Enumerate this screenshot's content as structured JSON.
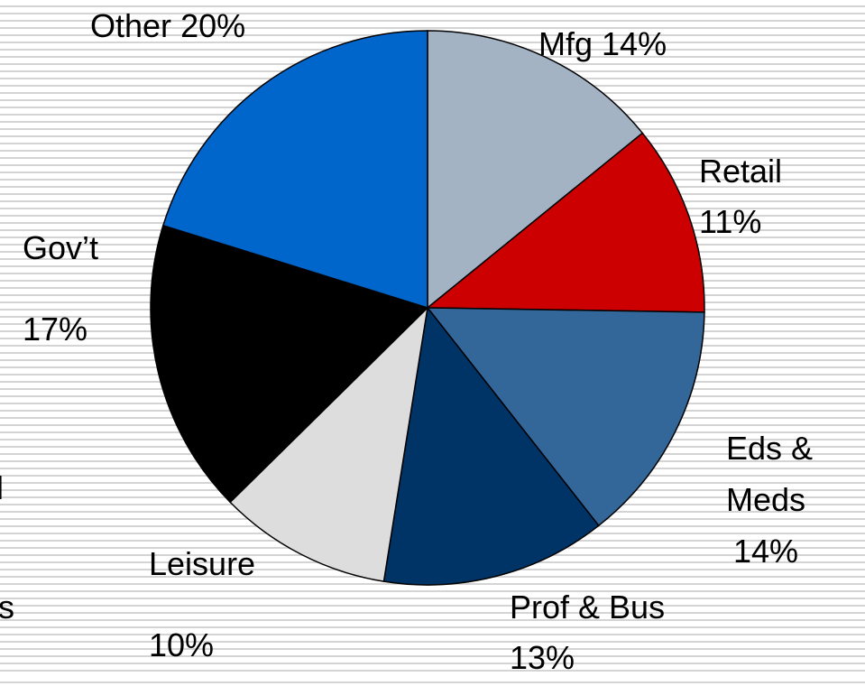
{
  "chart_data": {
    "type": "pie",
    "categories": [
      "Mfg",
      "Retail",
      "Eds & Meds",
      "Prof & Bus",
      "Leisure",
      "Gov’t",
      "Other"
    ],
    "values": [
      14,
      11,
      14,
      13,
      10,
      17,
      20
    ],
    "value_labels": [
      "14%",
      "11%",
      "14%",
      "13%",
      "10%",
      "17%",
      "20%"
    ],
    "colors": [
      "#a3b3c4",
      "#cc0000",
      "#336699",
      "#003366",
      "#dddddd",
      "#000000",
      "#0066cc"
    ],
    "clipped_text": [
      "il",
      "s"
    ]
  }
}
